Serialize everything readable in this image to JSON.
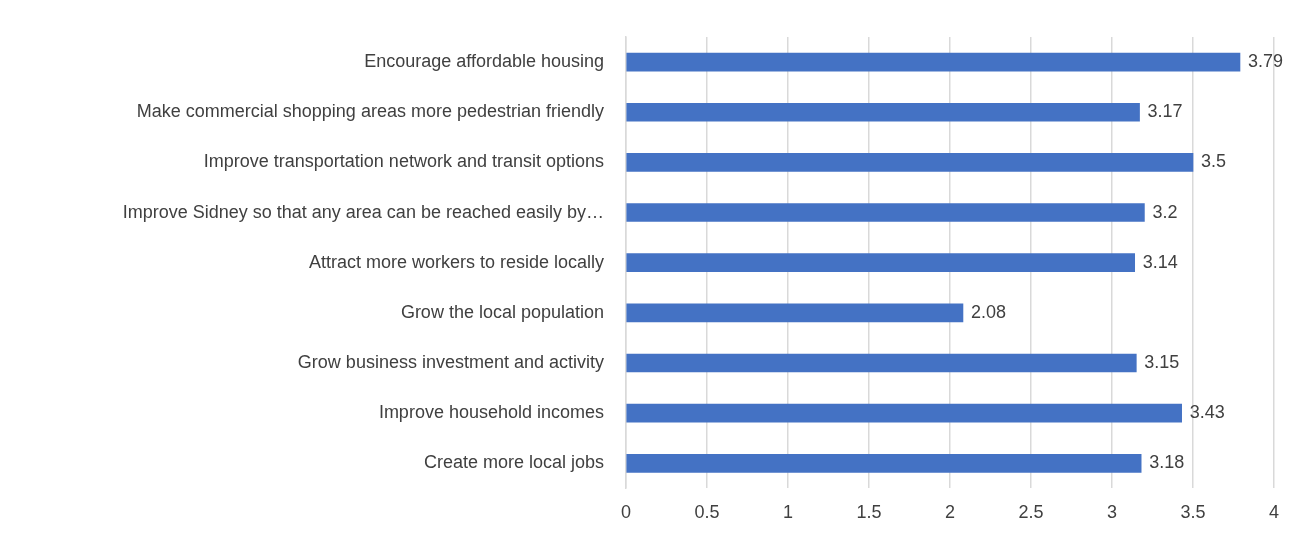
{
  "chart_data": {
    "type": "bar",
    "orientation": "horizontal",
    "categories": [
      "Encourage affordable housing",
      "Make commercial shopping areas more pedestrian friendly",
      "Improve transportation network and transit options",
      "Improve Sidney so that any area can be reached easily by…",
      "Attract more workers to reside locally",
      "Grow the local population",
      "Grow business investment and activity",
      "Improve household incomes",
      "Create more local jobs"
    ],
    "values": [
      3.79,
      3.17,
      3.5,
      3.2,
      3.14,
      2.08,
      3.15,
      3.43,
      3.18
    ],
    "color": "#4472c4",
    "xlim": [
      0,
      4
    ],
    "xticks": [
      0,
      0.5,
      1,
      1.5,
      2,
      2.5,
      3,
      3.5,
      4
    ],
    "grid": "x",
    "legend": false,
    "data_labels": true
  }
}
